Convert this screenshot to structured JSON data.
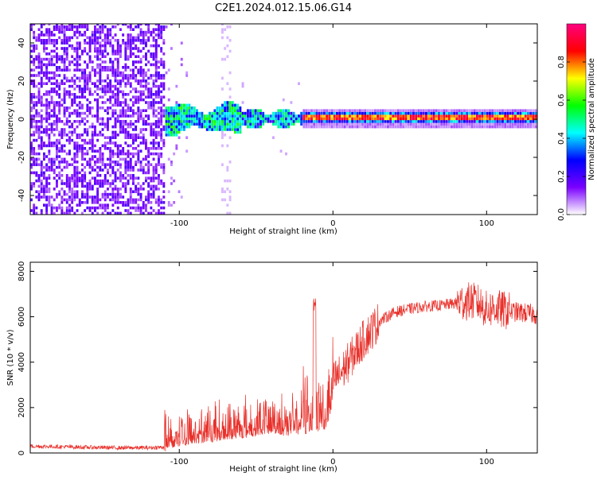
{
  "title": "C2E1.2024.012.15.06.G14",
  "colors": {
    "snr_line": "#e8302a",
    "frame": "#000000"
  },
  "chart_data": [
    {
      "type": "heatmap",
      "xlabel": "Height of straight line (km)",
      "ylabel": "Frequency (Hz)",
      "xlim": [
        -197,
        133
      ],
      "ylim": [
        -50,
        50
      ],
      "x_ticks": [
        -100,
        0,
        100
      ],
      "y_ticks": [
        -40,
        -20,
        0,
        20,
        40
      ],
      "colorbar": {
        "label": "Normalized spectral amplitude",
        "range": [
          0,
          1
        ],
        "ticks": [
          0.0,
          0.2,
          0.4,
          0.6,
          0.8
        ],
        "colormap": [
          "#ffffff",
          "#7a00ff",
          "#0000ff",
          "#00ffff",
          "#00ff00",
          "#ffff00",
          "#ff0000",
          "#ff0080"
        ]
      },
      "regions": [
        {
          "x": [
            -197,
            -110
          ],
          "f": [
            -50,
            50
          ],
          "amplitude": 0.1,
          "description": "broadband noise"
        },
        {
          "x": [
            -110,
            -60
          ],
          "f": [
            -8,
            8
          ],
          "amplitude": 0.3
        },
        {
          "x": [
            -60,
            -20
          ],
          "f": [
            -5,
            5
          ],
          "amplitude": 0.35
        },
        {
          "x": [
            -20,
            133
          ],
          "f": [
            -2,
            2
          ],
          "amplitude": 0.85
        }
      ]
    },
    {
      "type": "line",
      "xlabel": "Height of straight line (km)",
      "ylabel": "SNR (10 * v/v)",
      "xlim": [
        -197,
        133
      ],
      "ylim": [
        0,
        8400
      ],
      "x_ticks": [
        -100,
        0,
        100
      ],
      "y_ticks": [
        0,
        2000,
        4000,
        6000,
        8000
      ],
      "series": [
        {
          "x": [
            -197,
            -180,
            -160,
            -140,
            -120,
            -110,
            -100,
            -90,
            -80,
            -70,
            -60,
            -50,
            -40,
            -30,
            -20,
            -10,
            -5,
            0,
            5,
            10,
            15,
            20,
            25,
            30,
            40,
            50,
            60,
            70,
            80,
            90,
            95,
            100,
            105,
            110,
            120,
            133
          ],
          "y": [
            300,
            280,
            250,
            230,
            230,
            260,
            600,
            900,
            1000,
            1200,
            1300,
            1500,
            1700,
            1500,
            1700,
            1900,
            2100,
            3200,
            3500,
            4000,
            4500,
            5000,
            5400,
            5800,
            6200,
            6350,
            6450,
            6500,
            6600,
            6700,
            6600,
            6300,
            6400,
            6300,
            6200,
            6100
          ]
        }
      ]
    }
  ]
}
